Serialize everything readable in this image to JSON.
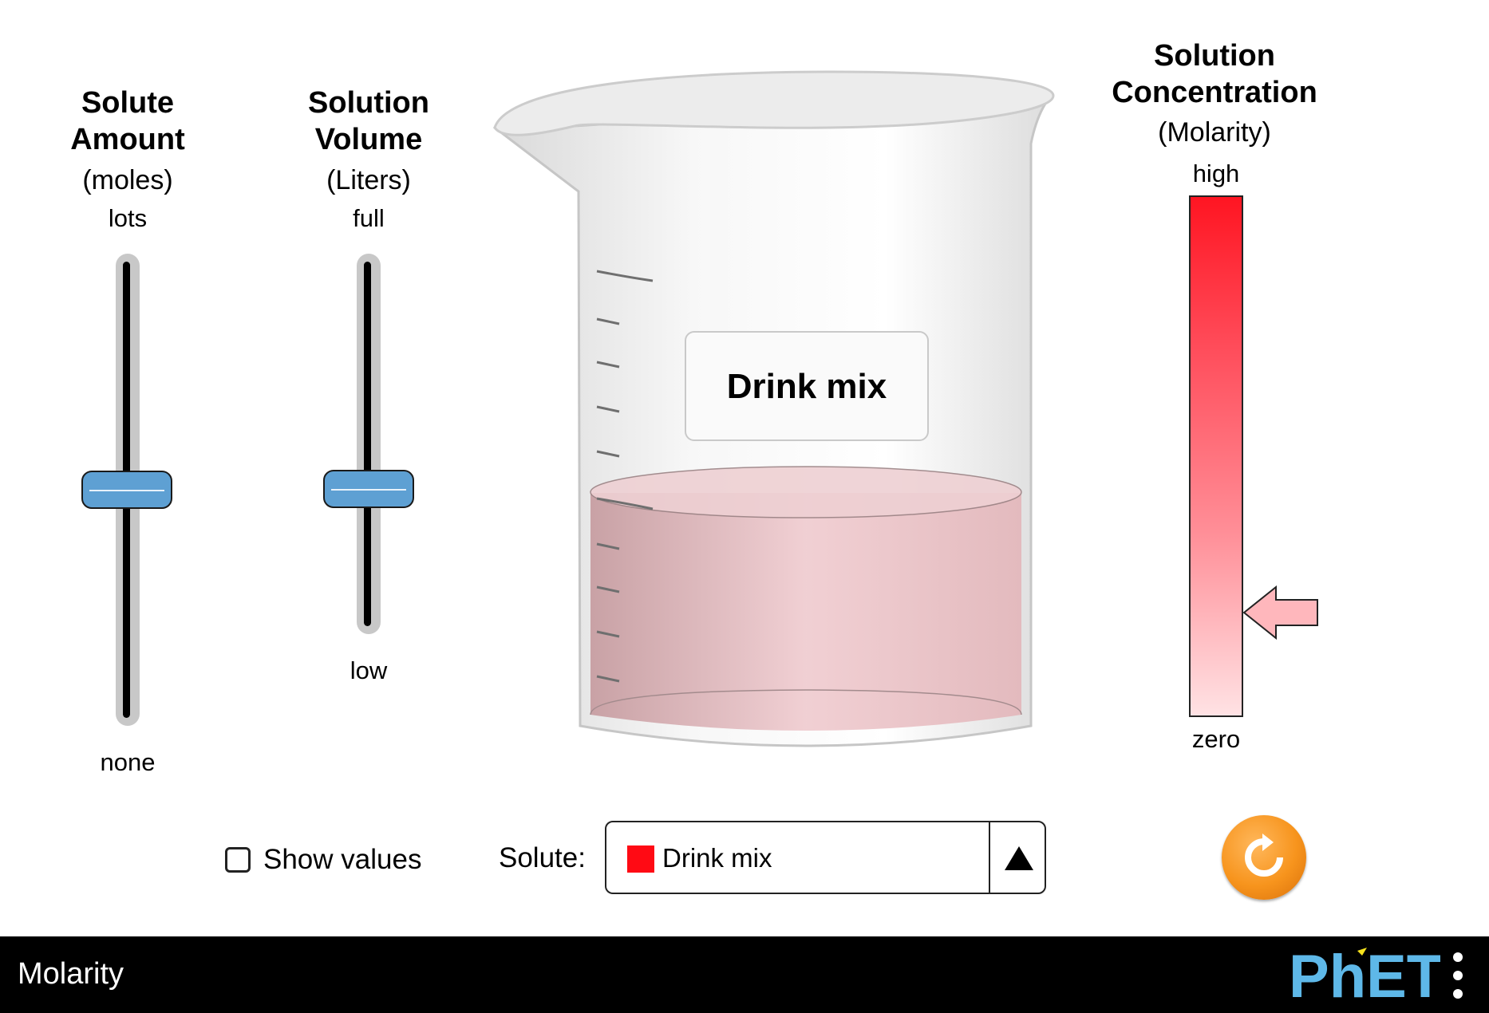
{
  "solute_amount": {
    "title": "Solute\nAmount",
    "title_line1": "Solute",
    "title_line2": "Amount",
    "units": "(moles)",
    "max_label": "lots",
    "min_label": "none",
    "level": 0.5
  },
  "solution_volume": {
    "title_line1": "Solution",
    "title_line2": "Volume",
    "units": "(Liters)",
    "max_label": "full",
    "min_label": "low",
    "level": 0.5
  },
  "beaker": {
    "solute_label": "Drink mix",
    "solution_color": "#e8b6bb",
    "fill_level": 0.5
  },
  "concentration": {
    "title_line1": "Solution",
    "title_line2": "Concentration",
    "units": "(Molarity)",
    "max_label": "high",
    "min_label": "zero",
    "level": 0.2,
    "pointer_color": "#ffb7bc"
  },
  "controls": {
    "show_values_label": "Show values",
    "show_values_checked": false,
    "solute_label": "Solute:",
    "solute_selected": "Drink mix",
    "solute_color": "#ff0a14"
  },
  "reset_button": {
    "icon": "reset-arrow-icon",
    "color": "#f7941d"
  },
  "navbar": {
    "app_title": "Molarity",
    "logo_text": "PhET",
    "menu_icon": "vertical-ellipsis-icon"
  }
}
